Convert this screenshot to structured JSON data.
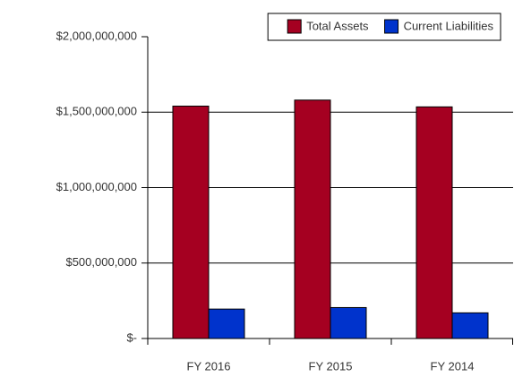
{
  "chart_data": {
    "type": "bar",
    "categories": [
      "FY 2016",
      "FY 2015",
      "FY 2014"
    ],
    "series": [
      {
        "name": "Total Assets",
        "color": "#a50021",
        "values": [
          1540000000,
          1580000000,
          1535000000
        ]
      },
      {
        "name": "Current Liabilities",
        "color": "#0033cc",
        "values": [
          195000000,
          205000000,
          170000000
        ]
      }
    ],
    "ylim": [
      0,
      2000000000
    ],
    "yticks": [
      {
        "value": 0,
        "label": "$-"
      },
      {
        "value": 500000000,
        "label": "$500,000,000"
      },
      {
        "value": 1000000000,
        "label": "$1,000,000,000"
      },
      {
        "value": 1500000000,
        "label": "$1,500,000,000"
      },
      {
        "value": 2000000000,
        "label": "$2,000,000,000"
      }
    ],
    "grid": true,
    "legend": "top-right"
  }
}
